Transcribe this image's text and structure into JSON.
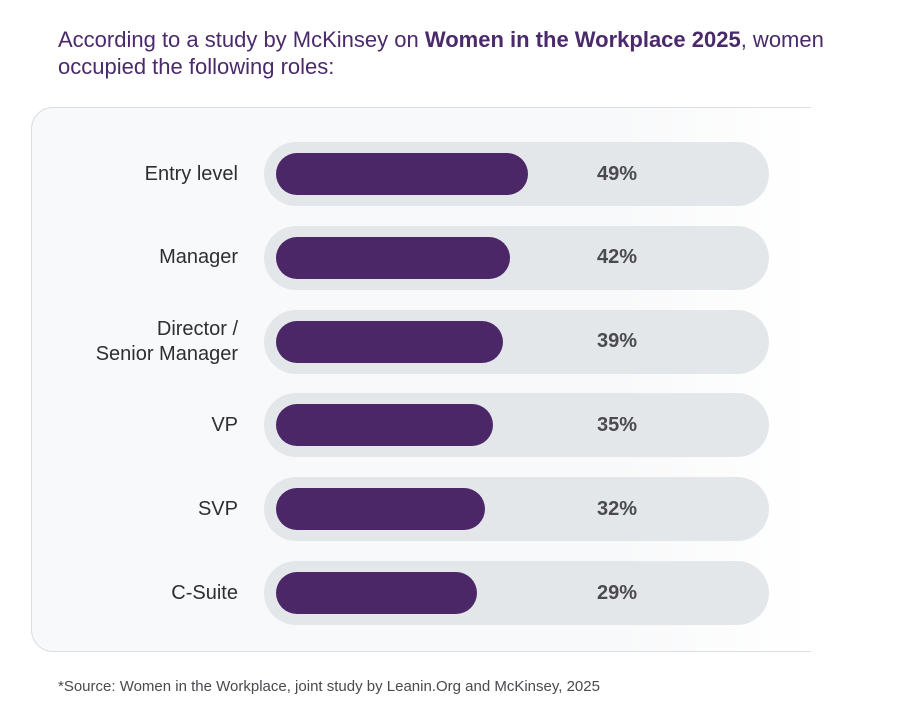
{
  "intro": {
    "prefix": "According to a study by McKinsey on ",
    "emphasis": "Women in the Workplace 2025",
    "suffix": ", women occupied the following roles:"
  },
  "chart_data": {
    "type": "bar",
    "orientation": "horizontal",
    "categories": [
      "Entry level",
      "Manager",
      "Director /\nSenior Manager",
      "VP",
      "SVP",
      "C-Suite"
    ],
    "values": [
      49,
      42,
      39,
      35,
      32,
      29
    ],
    "value_labels": [
      "49%",
      "42%",
      "39%",
      "35%",
      "32%",
      "29%"
    ],
    "unit": "%",
    "xlim": [
      0,
      100
    ],
    "grid": false,
    "legend": "none"
  },
  "source": "*Source: Women in the Workplace, joint study by Leanin.Org and McKinsey, 2025",
  "colors": {
    "bar": "#4b2768",
    "track": "#e4e7ea",
    "heading": "#4a2a6b"
  }
}
